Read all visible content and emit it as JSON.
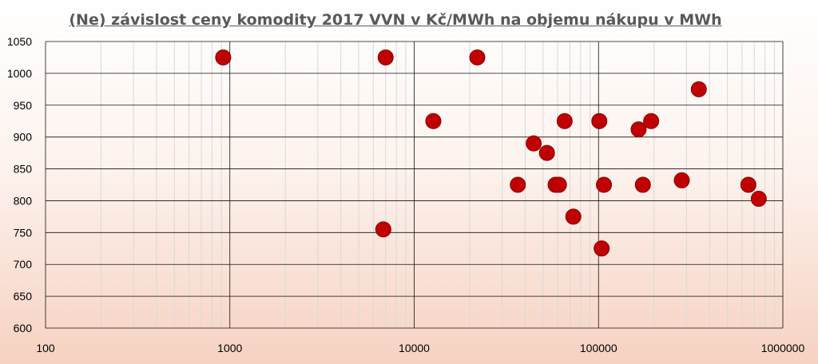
{
  "chart_data": {
    "type": "scatter",
    "title": "(Ne) závislost ceny komodity 2017 VVN v Kč/MWh na objemu nákupu v MWh",
    "xlabel": "",
    "ylabel": "",
    "x_scale": "log",
    "xlim": [
      100,
      1000000
    ],
    "ylim": [
      600,
      1050
    ],
    "x_ticks": [
      100,
      1000,
      10000,
      100000,
      1000000
    ],
    "x_tick_labels": [
      "100",
      "1000",
      "10000",
      "100000",
      "1000000"
    ],
    "y_ticks": [
      600,
      650,
      700,
      750,
      800,
      850,
      900,
      950,
      1000,
      1050
    ],
    "y_tick_labels": [
      "600",
      "650",
      "700",
      "750",
      "800",
      "850",
      "900",
      "950",
      "1000",
      "1050"
    ],
    "grid": true,
    "legend": "none",
    "marker_color": "#c00000",
    "series": [
      {
        "points": [
          {
            "x": 920,
            "y": 1025
          },
          {
            "x": 7000,
            "y": 1025
          },
          {
            "x": 22000,
            "y": 1025
          },
          {
            "x": 6800,
            "y": 755
          },
          {
            "x": 12700,
            "y": 925
          },
          {
            "x": 36500,
            "y": 825
          },
          {
            "x": 44500,
            "y": 890
          },
          {
            "x": 52500,
            "y": 875
          },
          {
            "x": 58500,
            "y": 825
          },
          {
            "x": 61000,
            "y": 825
          },
          {
            "x": 65500,
            "y": 925
          },
          {
            "x": 73000,
            "y": 775
          },
          {
            "x": 101000,
            "y": 925
          },
          {
            "x": 104000,
            "y": 725
          },
          {
            "x": 107000,
            "y": 825
          },
          {
            "x": 165000,
            "y": 912
          },
          {
            "x": 174000,
            "y": 825
          },
          {
            "x": 193000,
            "y": 925
          },
          {
            "x": 283000,
            "y": 832
          },
          {
            "x": 350000,
            "y": 975
          },
          {
            "x": 650000,
            "y": 825
          },
          {
            "x": 740000,
            "y": 803
          }
        ]
      }
    ]
  }
}
